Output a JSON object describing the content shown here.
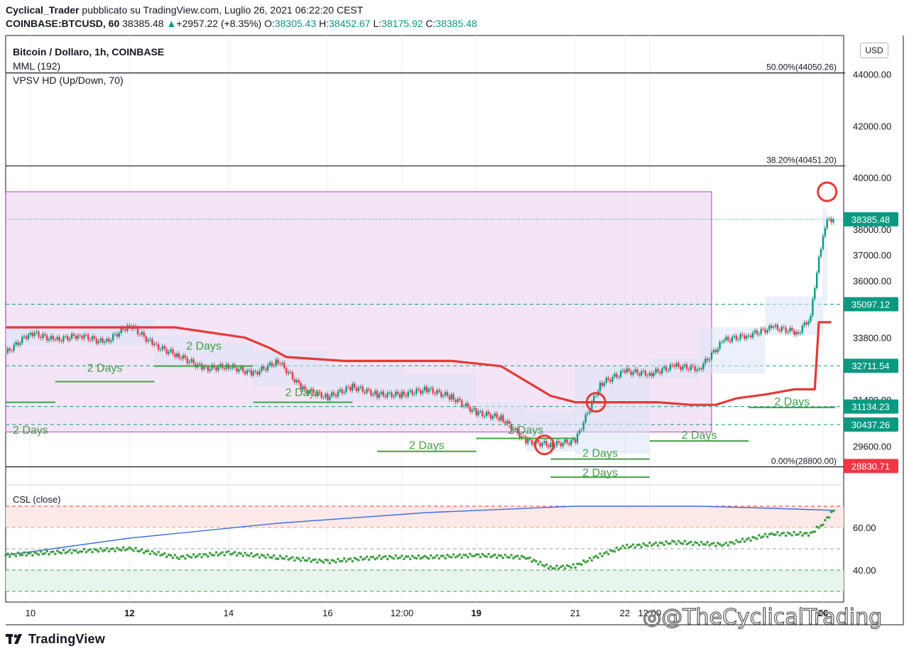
{
  "header": {
    "author": "Cyclical_Trader",
    "published_text": "pubblicato su TradingView.com, Luglio 26, 2021 06:22:20 CEST",
    "symbol": "COINBASE:BTCUSD, 60",
    "last": "38385.48",
    "change": "+2957.22 (+8.35%)",
    "open_label": "O:",
    "open": "38305.43",
    "high_label": "H:",
    "high": "38452.67",
    "low_label": "L:",
    "low": "38175.92",
    "close_label": "C:",
    "close": "38385.48"
  },
  "legend": {
    "line1": "Bitcoin / Dollaro, 1h, COINBASE",
    "line2": "MML (192)",
    "line3": "VPSV HD (Up/Down, 70)"
  },
  "currency": "USD",
  "brand": "TradingView",
  "watermark": "@TheCyclicalTrading",
  "colors": {
    "up": "#089981",
    "down": "#f23645",
    "mml": "#e53935",
    "green_line": "#43a047",
    "box_fill": "#f3e1f5",
    "box_stroke": "#ab47bc",
    "csl_line": "#3d6be0",
    "csl_dots": "#43a047",
    "tag_teal": "#089981",
    "tag_red": "#f23645"
  },
  "chart_data": [
    {
      "type": "line",
      "title": "Bitcoin / Dollaro, 1h, COINBASE",
      "y_ticks": [
        "44000.00",
        "42000.00",
        "40000.00",
        "38000.00",
        "37000.00",
        "36000.00",
        "33800.00",
        "31400.00",
        "29600.00"
      ],
      "x_ticks": [
        "10",
        "12",
        "14",
        "16",
        "12:00",
        "19",
        "21",
        "22",
        "12:00",
        "26"
      ],
      "price_tags": [
        {
          "label": "38385.48",
          "color": "#089981"
        },
        {
          "label": "35097.12",
          "color": "#089981"
        },
        {
          "label": "32711.54",
          "color": "#089981"
        },
        {
          "label": "31134.23",
          "color": "#089981"
        },
        {
          "label": "30437.26",
          "color": "#089981"
        },
        {
          "label": "28830.71",
          "color": "#f23645"
        }
      ],
      "fib_levels": [
        {
          "label": "50.00%(44050.26)",
          "value": 44050.26
        },
        {
          "label": "38.20%(40451.20)",
          "value": 40451.2
        },
        {
          "label": "0.00%(28800.00)",
          "value": 28800.0
        }
      ],
      "dashed_levels": [
        35097.12,
        32711.54,
        31134.23,
        30437.26
      ],
      "period_label": "2 Days",
      "series": [
        {
          "name": "MML (192)",
          "x": [
            "2021-07-09T12:00",
            "2021-07-12T22:00",
            "2021-07-14T08:00",
            "2021-07-14T20:00",
            "2021-07-15T04:00",
            "2021-07-16T08:00",
            "2021-07-18T12:00",
            "2021-07-19T12:00",
            "2021-07-20T12:00",
            "2021-07-21T00:00",
            "2021-07-21T12:00",
            "2021-07-22T16:00",
            "2021-07-23T08:00",
            "2021-07-23T20:00",
            "2021-07-24T06:00",
            "2021-07-24T20:00",
            "2021-07-25T10:00",
            "2021-07-25T20:00",
            "2021-07-25T22:00",
            "2021-07-26T04:00"
          ],
          "y": [
            34200,
            34200,
            33800,
            33400,
            33050,
            32900,
            32900,
            32700,
            31550,
            31300,
            31300,
            31300,
            31200,
            31200,
            31450,
            31600,
            31800,
            31800,
            34400,
            34400
          ]
        },
        {
          "name": "BTCUSD",
          "x": [
            "2021-07-09T12:00",
            "2021-07-10T00:00",
            "2021-07-10T12:00",
            "2021-07-11T00:00",
            "2021-07-11T12:00",
            "2021-07-12T00:00",
            "2021-07-12T12:00",
            "2021-07-13T00:00",
            "2021-07-13T12:00",
            "2021-07-14T00:00",
            "2021-07-14T12:00",
            "2021-07-15T00:00",
            "2021-07-15T12:00",
            "2021-07-16T00:00",
            "2021-07-16T12:00",
            "2021-07-17T00:00",
            "2021-07-17T12:00",
            "2021-07-18T00:00",
            "2021-07-18T12:00",
            "2021-07-19T00:00",
            "2021-07-19T12:00",
            "2021-07-20T00:00",
            "2021-07-20T12:00",
            "2021-07-21T00:00",
            "2021-07-21T12:00",
            "2021-07-22T00:00",
            "2021-07-22T12:00",
            "2021-07-23T00:00",
            "2021-07-23T12:00",
            "2021-07-24T00:00",
            "2021-07-24T12:00",
            "2021-07-25T00:00",
            "2021-07-25T12:00",
            "2021-07-25T18:00",
            "2021-07-25T22:00",
            "2021-07-26T02:00",
            "2021-07-26T05:00"
          ],
          "y": [
            33200,
            34000,
            33700,
            33900,
            33600,
            34300,
            33500,
            33100,
            32600,
            32700,
            32400,
            32900,
            31800,
            31500,
            31900,
            31600,
            31600,
            31800,
            31500,
            30900,
            30700,
            29800,
            29650,
            29800,
            32000,
            32500,
            32400,
            32700,
            32600,
            33700,
            33900,
            34200,
            34000,
            34600,
            37000,
            38300,
            38385
          ]
        }
      ]
    },
    {
      "type": "line",
      "title": "CSL (close)",
      "y_ticks": [
        "60.00",
        "40.00"
      ],
      "series": [
        {
          "name": "CSL (close)",
          "x": [
            "2021-07-09T12:00",
            "2021-07-12T00:00",
            "2021-07-15T00:00",
            "2021-07-18T00:00",
            "2021-07-21T00:00",
            "2021-07-23T12:00",
            "2021-07-25T00:00",
            "2021-07-26T06:00"
          ],
          "y": [
            47,
            55,
            62,
            67,
            70,
            70,
            69,
            68
          ]
        },
        {
          "name": "CSL (close)",
          "x": [
            "2021-07-09T12:00",
            "2021-07-11T00:00",
            "2021-07-12T00:00",
            "2021-07-13T00:00",
            "2021-07-14T00:00",
            "2021-07-15T00:00",
            "2021-07-16T00:00",
            "2021-07-17T00:00",
            "2021-07-18T00:00",
            "2021-07-19T00:00",
            "2021-07-20T00:00",
            "2021-07-20T12:00",
            "2021-07-21T00:00",
            "2021-07-21T12:00",
            "2021-07-22T00:00",
            "2021-07-23T00:00",
            "2021-07-24T00:00",
            "2021-07-25T00:00",
            "2021-07-25T18:00",
            "2021-07-26T00:00",
            "2021-07-26T06:00"
          ],
          "y": [
            47,
            49,
            50,
            46,
            48,
            46,
            44,
            46,
            46,
            47,
            46,
            41,
            42,
            47,
            51,
            53,
            52,
            57,
            57,
            62,
            69
          ]
        }
      ]
    }
  ]
}
